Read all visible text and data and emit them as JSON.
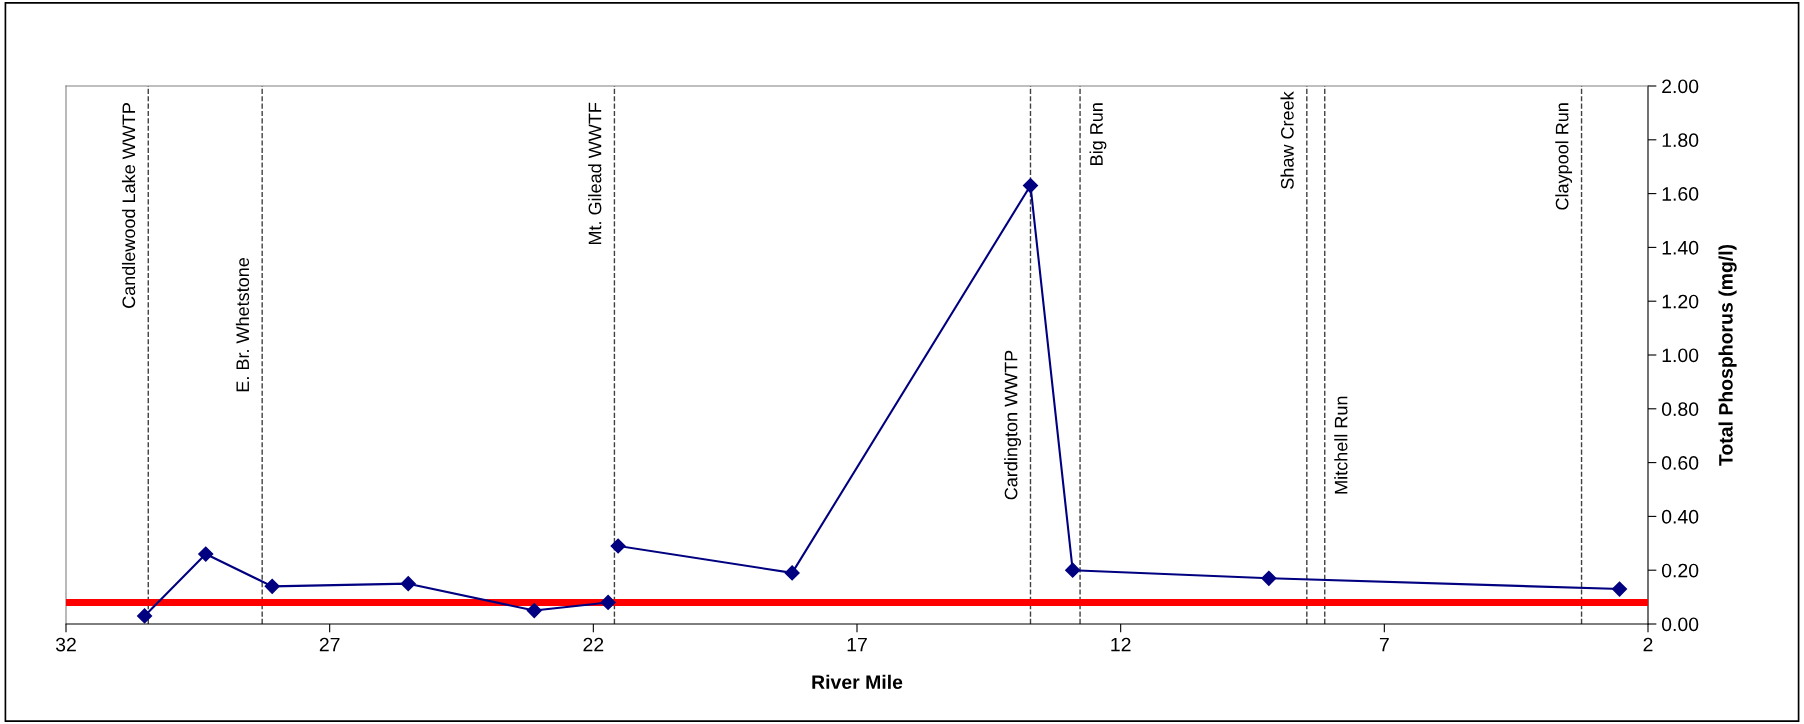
{
  "chart_data": {
    "type": "line",
    "xlabel": "River Mile",
    "ylabel": "Total Phosphorus (mg/l)",
    "x": [
      30.51,
      29.35,
      28.09,
      25.51,
      23.12,
      21.72,
      21.62,
      21.53,
      18.23,
      13.71,
      12.91,
      9.19,
      2.54
    ],
    "series": [
      {
        "color": "#000080",
        "values": [
          0.03,
          0.26,
          0.14,
          0.15,
          0.05,
          0.08,
          null,
          0.29,
          0.19,
          1.63,
          0.2,
          0.17,
          0.13
        ]
      }
    ],
    "marker": "diamond",
    "line_style": "solid",
    "xlim": [
      32,
      2
    ],
    "xticks": [
      32,
      27,
      22,
      17,
      12,
      7,
      2
    ],
    "ylim": [
      0,
      2
    ],
    "yticks": [
      {
        "value": 0,
        "label": "0.00"
      },
      {
        "value": 0.2,
        "label": "0.20"
      },
      {
        "value": 0.4,
        "label": "0.40"
      },
      {
        "value": 0.6,
        "label": "0.60"
      },
      {
        "value": 0.8,
        "label": "0.80"
      },
      {
        "value": 1.0,
        "label": "1.00"
      },
      {
        "value": 1.2,
        "label": "1.20"
      },
      {
        "value": 1.4,
        "label": "1.40"
      },
      {
        "value": 1.6,
        "label": "1.60"
      },
      {
        "value": 1.8,
        "label": "1.80"
      },
      {
        "value": 2.0,
        "label": "2.00"
      }
    ],
    "ref_lines": [
      {
        "axis": "x",
        "value": 30.44,
        "label": "Candlewood Lake WWTP",
        "color": "#404040",
        "line_style": "dashed"
      },
      {
        "axis": "x",
        "value": 28.28,
        "label": "E. Br. Whetstone",
        "color": "#404040",
        "line_style": "dashed"
      },
      {
        "axis": "x",
        "value": 21.6,
        "label": "Mt. Gilead WWTF",
        "color": "#404040",
        "line_style": "dashed"
      },
      {
        "axis": "x",
        "value": 13.71,
        "label": "Cardington WWTP",
        "color": "#404040",
        "line_style": "dashed"
      },
      {
        "axis": "x",
        "value": 12.77,
        "label": "Big Run",
        "color": "#404040",
        "line_style": "dashed"
      },
      {
        "axis": "x",
        "value": 8.47,
        "label": "Shaw Creek",
        "color": "#404040",
        "line_style": "dashed"
      },
      {
        "axis": "x",
        "value": 8.13,
        "label": "Mitchell Run",
        "color": "#404040",
        "line_style": "dashed"
      },
      {
        "axis": "x",
        "value": 3.26,
        "label": "Claypool Run",
        "color": "#404040",
        "line_style": "dashed"
      },
      {
        "axis": "y",
        "value": 0.08,
        "color": "#ff0000",
        "line_style": "solid"
      }
    ],
    "grid": false,
    "legend": false
  }
}
